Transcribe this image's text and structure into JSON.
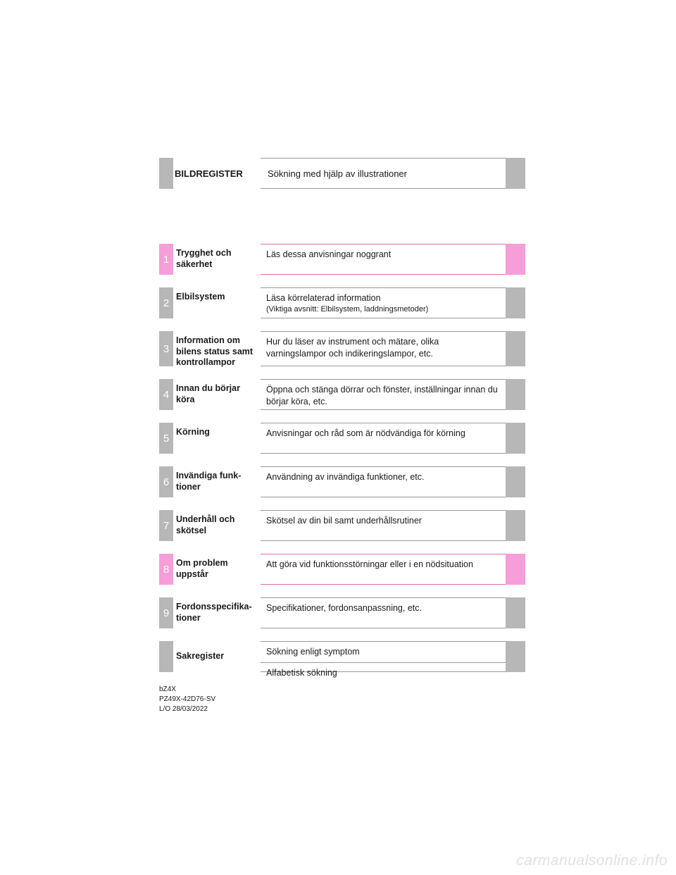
{
  "header": {
    "label": "BILDREGISTER",
    "description": "Sökning med hjälp av illustrationer"
  },
  "sections": [
    {
      "num": "1",
      "title": "Trygghet och säkerhet",
      "desc": "Läs dessa anvisningar noggrant",
      "highlight": true,
      "h": "h44"
    },
    {
      "num": "2",
      "title": "Elbilsystem",
      "desc": "Läsa körrelaterad information",
      "sub": "(Viktiga avsnitt: Elbilsystem, laddningsmetoder)",
      "highlight": false,
      "h": "h44"
    },
    {
      "num": "3",
      "title": "Information om bilens status samt kontrollampor",
      "desc": "Hur du läser av instrument och mätare, olika varningslampor och indikeringslampor, etc.",
      "highlight": false,
      "h": "h50"
    },
    {
      "num": "4",
      "title": "Innan du börjar köra",
      "desc": "Öppna och stänga dörrar och fönster, inställningar innan du börjar köra, etc.",
      "highlight": false,
      "h": "h44"
    },
    {
      "num": "5",
      "title": "Körning",
      "desc": "Anvisningar och råd som är nödvändiga för körning",
      "highlight": false,
      "h": "h44"
    },
    {
      "num": "6",
      "title": "Invändiga funk­tioner",
      "desc": "Användning av invändiga funktioner, etc.",
      "highlight": false,
      "h": "h44"
    },
    {
      "num": "7",
      "title": "Underhåll och skötsel",
      "desc": "Skötsel av din bil samt underhållsrutiner",
      "highlight": false,
      "h": "h44"
    },
    {
      "num": "8",
      "title": "Om problem uppstår",
      "desc": "Att göra vid funktionsstörningar eller i en nödsituation",
      "highlight": true,
      "h": "h44"
    },
    {
      "num": "9",
      "title": "Fordonsspecifika­tioner",
      "desc": "Specifikationer, fordonsanpassning, etc.",
      "highlight": false,
      "h": "h44"
    }
  ],
  "index_row": {
    "title": "Sakregister",
    "desc_top": "Sökning enligt symptom",
    "desc_bot": "Alfabetisk sökning"
  },
  "footer": {
    "line1": "bZ4X",
    "line2": "PZ49X-42D76-SV",
    "line3": "L/O 28/03/2022"
  },
  "watermark": "carmanualsonline.info"
}
